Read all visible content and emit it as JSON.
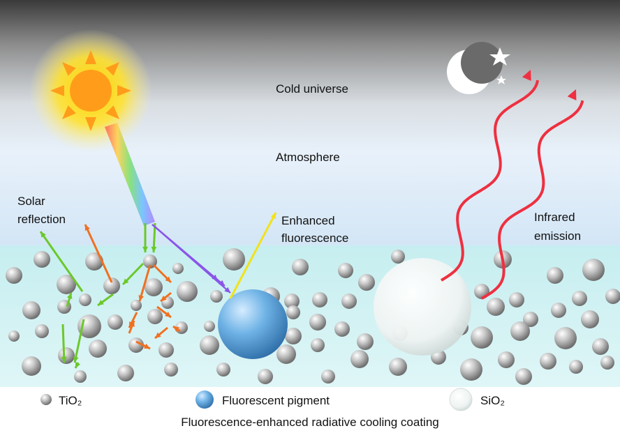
{
  "labels": {
    "cold_universe": "Cold universe",
    "atmosphere": "Atmosphere",
    "solar_reflection": [
      "Solar",
      "reflection"
    ],
    "enhanced_fluorescence": [
      "Enhanced",
      "fluorescence"
    ],
    "infrared_emission": [
      "Infrared",
      "emission"
    ]
  },
  "legend": [
    {
      "label": "TiO₂"
    },
    {
      "label": "Fluorescent pigment"
    },
    {
      "label": "SiO₂"
    }
  ],
  "caption": "Fluorescence-enhanced radiative cooling coating"
}
